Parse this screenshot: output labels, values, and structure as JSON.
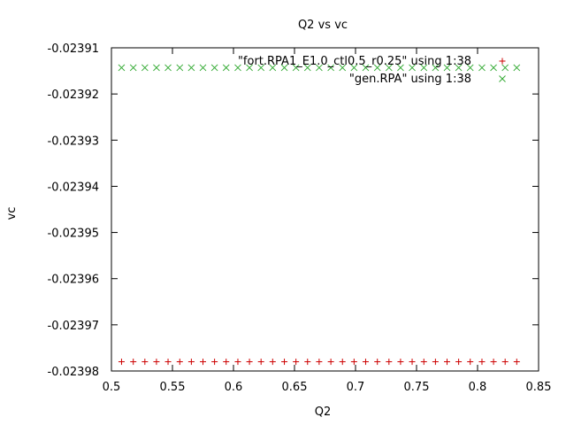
{
  "chart_data": {
    "type": "scatter",
    "title": "Q2 vs vc",
    "xlabel": "Q2",
    "ylabel": "vc",
    "xlim": [
      0.5,
      0.85
    ],
    "ylim": [
      -0.02398,
      -0.02391
    ],
    "xticks": [
      0.5,
      0.55,
      0.6,
      0.65,
      0.7,
      0.75,
      0.8,
      0.85
    ],
    "xtick_labels": [
      "0.5",
      "0.55",
      "0.6",
      "0.65",
      "0.7",
      "0.75",
      "0.8",
      "0.85"
    ],
    "yticks": [
      -0.02391,
      -0.02392,
      -0.02393,
      -0.02394,
      -0.02395,
      -0.02396,
      -0.02397,
      -0.02398
    ],
    "ytick_labels": [
      "-0.02391",
      "-0.02392",
      "-0.02393",
      "-0.02394",
      "-0.02395",
      "-0.02396",
      "-0.02397",
      "-0.02398"
    ],
    "grid": false,
    "legend_position": "top-right",
    "x": [
      0.5083,
      0.5179,
      0.5274,
      0.5369,
      0.5464,
      0.556,
      0.5655,
      0.575,
      0.5845,
      0.594,
      0.6036,
      0.6131,
      0.6226,
      0.6321,
      0.6417,
      0.6512,
      0.6607,
      0.6702,
      0.6798,
      0.6893,
      0.6988,
      0.7083,
      0.7179,
      0.7274,
      0.7369,
      0.7464,
      0.756,
      0.7655,
      0.775,
      0.7845,
      0.794,
      0.8036,
      0.8131,
      0.8226,
      0.8321
    ],
    "series": [
      {
        "name": "\"fort.RPA1_E1.0_ctl0.5_r0.25\" using 1:38",
        "marker": "plus",
        "color": "#cc0000",
        "y": [
          -0.023978,
          -0.023978,
          -0.023978,
          -0.023978,
          -0.023978,
          -0.023978,
          -0.023978,
          -0.023978,
          -0.023978,
          -0.023978,
          -0.023978,
          -0.023978,
          -0.023978,
          -0.023978,
          -0.023978,
          -0.023978,
          -0.023978,
          -0.023978,
          -0.023978,
          -0.023978,
          -0.023978,
          -0.023978,
          -0.023978,
          -0.023978,
          -0.023978,
          -0.023978,
          -0.023978,
          -0.023978,
          -0.023978,
          -0.023978,
          -0.023978,
          -0.023978,
          -0.023978,
          -0.023978,
          -0.023978
        ]
      },
      {
        "name": "\"gen.RPA\" using 1:38",
        "marker": "cross",
        "color": "#33aa33",
        "y": [
          -0.0239143,
          -0.0239143,
          -0.0239143,
          -0.0239143,
          -0.0239143,
          -0.0239143,
          -0.0239143,
          -0.0239143,
          -0.0239143,
          -0.0239143,
          -0.0239143,
          -0.0239143,
          -0.0239143,
          -0.0239143,
          -0.0239143,
          -0.0239143,
          -0.0239143,
          -0.0239143,
          -0.0239143,
          -0.0239143,
          -0.0239143,
          -0.0239143,
          -0.0239143,
          -0.0239143,
          -0.0239143,
          -0.0239143,
          -0.0239143,
          -0.0239143,
          -0.0239143,
          -0.0239143,
          -0.0239143,
          -0.0239143,
          -0.0239143,
          -0.0239143,
          -0.0239143
        ]
      }
    ]
  }
}
